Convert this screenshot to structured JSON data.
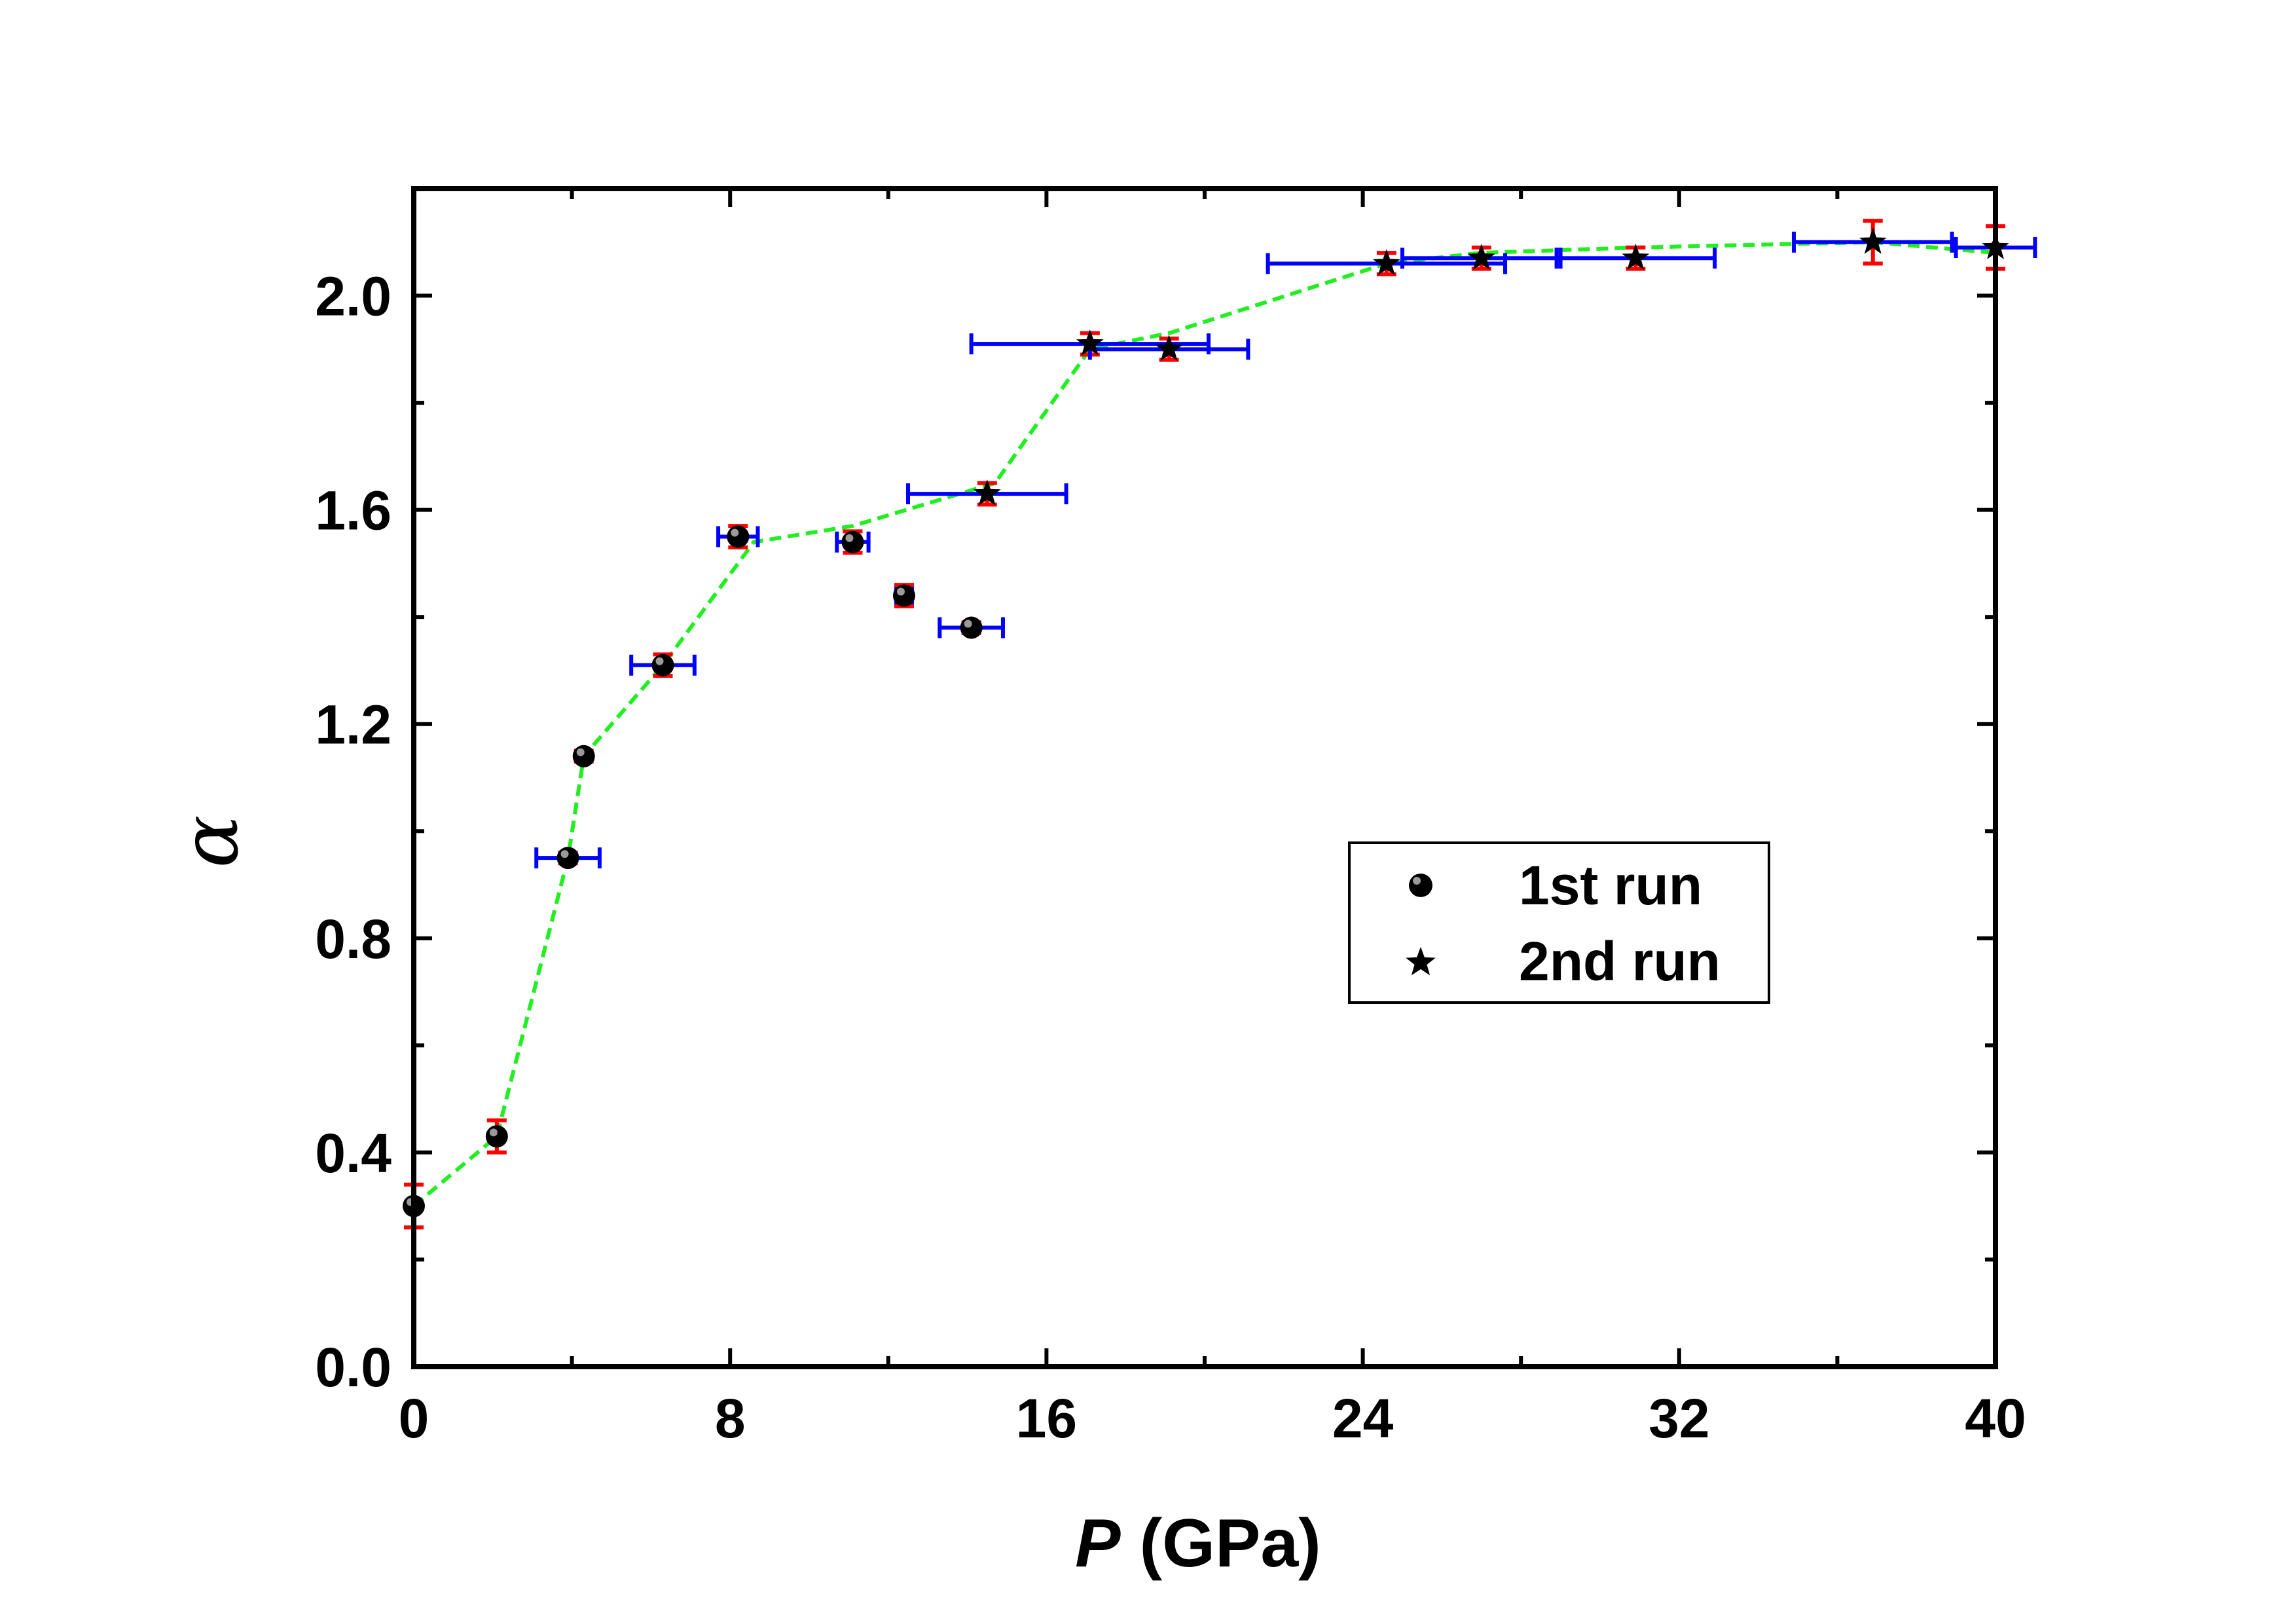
{
  "chart_data": {
    "type": "scatter",
    "title": "",
    "xlabel": {
      "symbol": "P",
      "unit": " (GPa)"
    },
    "ylabel": "α",
    "xlim": [
      0,
      40
    ],
    "ylim": [
      0.0,
      2.2
    ],
    "xticks": [
      0,
      8,
      16,
      24,
      32,
      40
    ],
    "xtick_labels": [
      "0",
      "8",
      "16",
      "24",
      "32",
      "40"
    ],
    "yticks": [
      0.0,
      0.4,
      0.8,
      1.2,
      1.6,
      2.0
    ],
    "ytick_labels": [
      "0.0",
      "0.4",
      "0.8",
      "1.2",
      "1.6",
      "2.0"
    ],
    "grid": false,
    "legend_position": "center-right",
    "colors": {
      "marker": "#000000",
      "yerr": "#ff0000",
      "xerr": "#0000ff",
      "trend": "#22ee22"
    },
    "series": [
      {
        "name": "1st run",
        "marker": "sphere",
        "points": [
          {
            "x": 0.0,
            "y": 0.3,
            "xerr": 0.0,
            "yerr": 0.04
          },
          {
            "x": 2.1,
            "y": 0.43,
            "xerr": 0.0,
            "yerr": 0.03
          },
          {
            "x": 3.9,
            "y": 0.95,
            "xerr": 0.8,
            "yerr": 0.01
          },
          {
            "x": 4.3,
            "y": 1.14,
            "xerr": 0.0,
            "yerr": 0.01
          },
          {
            "x": 6.3,
            "y": 1.31,
            "xerr": 0.8,
            "yerr": 0.02
          },
          {
            "x": 8.2,
            "y": 1.55,
            "xerr": 0.5,
            "yerr": 0.02
          },
          {
            "x": 11.1,
            "y": 1.54,
            "xerr": 0.4,
            "yerr": 0.02
          },
          {
            "x": 12.4,
            "y": 1.44,
            "xerr": 0.2,
            "yerr": 0.02
          },
          {
            "x": 14.1,
            "y": 1.38,
            "xerr": 0.8,
            "yerr": 0.01
          }
        ]
      },
      {
        "name": "2nd run",
        "marker": "star",
        "points": [
          {
            "x": 14.5,
            "y": 1.63,
            "xerr": 2.0,
            "yerr": 0.02
          },
          {
            "x": 17.1,
            "y": 1.91,
            "xerr": 3.0,
            "yerr": 0.02
          },
          {
            "x": 19.1,
            "y": 1.9,
            "xerr": 2.0,
            "yerr": 0.02
          },
          {
            "x": 24.6,
            "y": 2.06,
            "xerr": 3.0,
            "yerr": 0.02
          },
          {
            "x": 27.0,
            "y": 2.07,
            "xerr": 2.0,
            "yerr": 0.02
          },
          {
            "x": 30.9,
            "y": 2.07,
            "xerr": 2.0,
            "yerr": 0.02
          },
          {
            "x": 36.9,
            "y": 2.1,
            "xerr": 2.0,
            "yerr": 0.04
          },
          {
            "x": 40.0,
            "y": 2.09,
            "xerr": 1.0,
            "yerr": 0.04
          }
        ]
      }
    ],
    "trend_line": {
      "style": "dashed",
      "x": [
        0.0,
        2.1,
        3.9,
        4.3,
        6.3,
        8.6,
        11.1,
        14.7,
        17.1,
        19.1,
        24.6,
        27.0,
        30.9,
        36.9,
        40.0
      ],
      "y": [
        0.3,
        0.43,
        0.95,
        1.14,
        1.31,
        1.54,
        1.57,
        1.65,
        1.9,
        1.93,
        2.06,
        2.08,
        2.09,
        2.1,
        2.08
      ]
    }
  }
}
